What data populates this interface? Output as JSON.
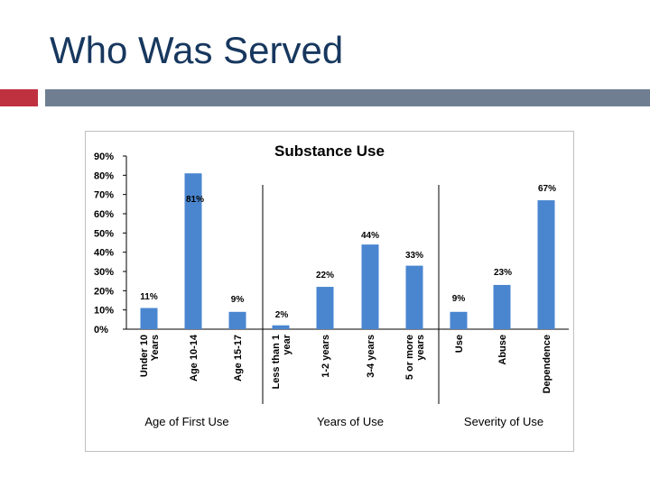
{
  "slide": {
    "title": "Who Was Served"
  },
  "colors": {
    "bar": "#4a86d0",
    "accent_red": "#c0313f",
    "accent_bar": "#6f7f91",
    "title": "#17375e"
  },
  "chart_data": {
    "type": "bar",
    "title": "Substance Use",
    "xlabel": "",
    "ylabel": "",
    "ylim": [
      0,
      90
    ],
    "yticks": [
      "90%",
      "80%",
      "70%",
      "60%",
      "50%",
      "40%",
      "30%",
      "20%",
      "10%",
      "0%"
    ],
    "grid": false,
    "legend": "none",
    "groups": [
      "Age of First Use",
      "Years of Use",
      "Severity of Use"
    ],
    "categories": [
      {
        "label": "Under 10 Years",
        "lines": [
          "Under 10",
          "Years"
        ],
        "value": 11,
        "data_label": "11%",
        "group": 0
      },
      {
        "label": "Age 10-14",
        "lines": [
          "Age 10-14"
        ],
        "value": 81,
        "data_label": "81%",
        "group": 0
      },
      {
        "label": "Age 15-17",
        "lines": [
          "Age 15-17"
        ],
        "value": 9,
        "data_label": "9%",
        "group": 0
      },
      {
        "label": "Less than 1 year",
        "lines": [
          "Less than 1",
          "year"
        ],
        "value": 2,
        "data_label": "2%",
        "group": 1
      },
      {
        "label": "1-2 years",
        "lines": [
          "1-2 years"
        ],
        "value": 22,
        "data_label": "22%",
        "group": 1
      },
      {
        "label": "3-4 years",
        "lines": [
          "3-4 years"
        ],
        "value": 44,
        "data_label": "44%",
        "group": 1
      },
      {
        "label": "5 or more years",
        "lines": [
          "5 or more",
          "years"
        ],
        "value": 33,
        "data_label": "33%",
        "group": 1
      },
      {
        "label": "Use",
        "lines": [
          "Use"
        ],
        "value": 9,
        "data_label": "9%",
        "group": 2
      },
      {
        "label": "Abuse",
        "lines": [
          "Abuse"
        ],
        "value": 23,
        "data_label": "23%",
        "group": 2
      },
      {
        "label": "Dependence",
        "lines": [
          "Dependence"
        ],
        "value": 67,
        "data_label": "67%",
        "group": 2
      }
    ]
  }
}
